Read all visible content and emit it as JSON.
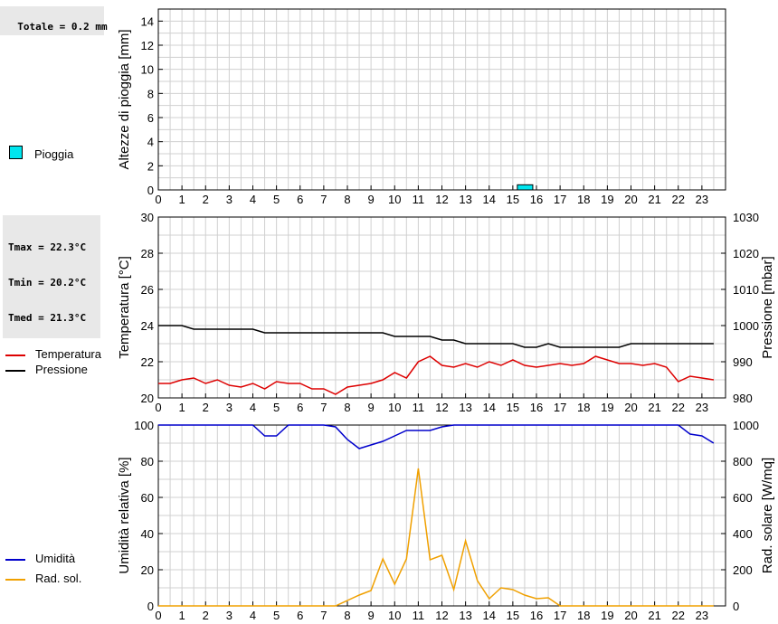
{
  "stats": {
    "rain_total": "Totale = 0.2 mm",
    "tmax": "Tmax = 22.3°C",
    "tmin": "Tmin = 20.2°C",
    "tmed": "Tmed = 21.3°C"
  },
  "legend": {
    "rain": "Pioggia",
    "temperature": "Temperatura",
    "pressure": "Pressione",
    "humidity": "Umidità",
    "solar": "Rad. sol."
  },
  "colors": {
    "rain": "#00e5ee",
    "temperature": "#dd0000",
    "pressure": "#000000",
    "humidity": "#0000cc",
    "solar": "#f0a000",
    "grid": "#d0d0d0"
  },
  "chart_data": [
    {
      "type": "bar",
      "ylabel": "Altezze di pioggia [mm]",
      "xlim": [
        0,
        24
      ],
      "ylim": [
        0,
        15
      ],
      "x_ticks": [
        0,
        1,
        2,
        3,
        4,
        5,
        6,
        7,
        8,
        9,
        10,
        11,
        12,
        13,
        14,
        15,
        16,
        17,
        18,
        19,
        20,
        21,
        22,
        23
      ],
      "y_ticks": [
        0,
        2,
        4,
        6,
        8,
        10,
        12,
        14
      ],
      "series": [
        {
          "name": "Pioggia",
          "x": [
            15.0
          ],
          "values": [
            0.2
          ]
        }
      ]
    },
    {
      "type": "line",
      "ylabel": "Temperatura [°C]",
      "ylabel_right": "Pressione [mbar]",
      "xlim": [
        0,
        24
      ],
      "ylim": [
        20,
        30
      ],
      "ylim_right": [
        980,
        1030
      ],
      "x_ticks": [
        0,
        1,
        2,
        3,
        4,
        5,
        6,
        7,
        8,
        9,
        10,
        11,
        12,
        13,
        14,
        15,
        16,
        17,
        18,
        19,
        20,
        21,
        22,
        23
      ],
      "y_ticks": [
        20,
        22,
        24,
        26,
        28,
        30
      ],
      "y_ticks_right": [
        980,
        990,
        1000,
        1010,
        1020,
        1030
      ],
      "series": [
        {
          "name": "Temperatura",
          "axis": "left",
          "x": [
            0,
            0.5,
            1,
            1.5,
            2,
            2.5,
            3,
            3.5,
            4,
            4.5,
            5,
            5.5,
            6,
            6.5,
            7,
            7.5,
            8,
            8.5,
            9,
            9.5,
            10,
            10.5,
            11,
            11.5,
            12,
            12.5,
            13,
            13.5,
            14,
            14.5,
            15,
            15.5,
            16,
            16.5,
            17,
            17.5,
            18,
            18.5,
            19,
            19.5,
            20,
            20.5,
            21,
            21.5,
            22,
            22.5,
            23,
            23.5
          ],
          "values": [
            20.8,
            20.8,
            21.0,
            21.1,
            20.8,
            21.0,
            20.7,
            20.6,
            20.8,
            20.5,
            20.9,
            20.8,
            20.8,
            20.5,
            20.5,
            20.2,
            20.6,
            20.7,
            20.8,
            21.0,
            21.4,
            21.1,
            22.0,
            22.3,
            21.8,
            21.7,
            21.9,
            21.7,
            22.0,
            21.8,
            22.1,
            21.8,
            21.7,
            21.8,
            21.9,
            21.8,
            21.9,
            22.3,
            22.1,
            21.9,
            21.9,
            21.8,
            21.9,
            21.7,
            20.9,
            21.2,
            21.1,
            21.0
          ]
        },
        {
          "name": "Pressione",
          "axis": "right",
          "x": [
            0,
            0.5,
            1,
            1.5,
            2,
            2.5,
            3,
            3.5,
            4,
            4.5,
            5,
            5.5,
            6,
            6.5,
            7,
            7.5,
            8,
            8.5,
            9,
            9.5,
            10,
            10.5,
            11,
            11.5,
            12,
            12.5,
            13,
            13.5,
            14,
            14.5,
            15,
            15.5,
            16,
            16.5,
            17,
            17.5,
            18,
            18.5,
            19,
            19.5,
            20,
            20.5,
            21,
            21.5,
            22,
            22.5,
            23,
            23.5
          ],
          "values": [
            1000,
            1000,
            1000,
            999,
            999,
            999,
            999,
            999,
            999,
            998,
            998,
            998,
            998,
            998,
            998,
            998,
            998,
            998,
            998,
            998,
            997,
            997,
            997,
            997,
            996,
            996,
            995,
            995,
            995,
            995,
            995,
            994,
            994,
            995,
            994,
            994,
            994,
            994,
            994,
            994,
            995,
            995,
            995,
            995,
            995,
            995,
            995,
            995
          ]
        }
      ]
    },
    {
      "type": "line",
      "ylabel": "Umidità relativa [%]",
      "ylabel_right": "Rad. solare [W/mq]",
      "xlim": [
        0,
        24
      ],
      "ylim": [
        0,
        100
      ],
      "ylim_right": [
        0,
        1000
      ],
      "x_ticks": [
        0,
        1,
        2,
        3,
        4,
        5,
        6,
        7,
        8,
        9,
        10,
        11,
        12,
        13,
        14,
        15,
        16,
        17,
        18,
        19,
        20,
        21,
        22,
        23
      ],
      "y_ticks": [
        0,
        20,
        40,
        60,
        80,
        100
      ],
      "y_ticks_right": [
        0,
        200,
        400,
        600,
        800,
        1000
      ],
      "series": [
        {
          "name": "Umidità",
          "axis": "left",
          "x": [
            0,
            0.5,
            1,
            1.5,
            2,
            2.5,
            3,
            3.5,
            4,
            4.5,
            5,
            5.5,
            6,
            6.5,
            7,
            7.5,
            8,
            8.5,
            9,
            9.5,
            10,
            10.5,
            11,
            11.5,
            12,
            12.5,
            13,
            13.5,
            14,
            14.5,
            15,
            15.5,
            16,
            16.5,
            17,
            17.5,
            18,
            18.5,
            19,
            19.5,
            20,
            20.5,
            21,
            21.5,
            22,
            22.5,
            23,
            23.5
          ],
          "values": [
            100,
            100,
            100,
            100,
            100,
            100,
            100,
            100,
            100,
            94,
            94,
            100,
            100,
            100,
            100,
            99,
            92,
            87,
            89,
            91,
            94,
            97,
            97,
            97,
            99,
            100,
            100,
            100,
            100,
            100,
            100,
            100,
            100,
            100,
            100,
            100,
            100,
            100,
            100,
            100,
            100,
            100,
            100,
            100,
            100,
            95,
            94,
            90
          ]
        },
        {
          "name": "Rad. sol.",
          "axis": "right",
          "x": [
            0,
            0.5,
            1,
            1.5,
            2,
            2.5,
            3,
            3.5,
            4,
            4.5,
            5,
            5.5,
            6,
            6.5,
            7,
            7.5,
            8,
            8.5,
            9,
            9.5,
            10,
            10.5,
            11,
            11.5,
            12,
            12.5,
            13,
            13.5,
            14,
            14.5,
            15,
            15.5,
            16,
            16.5,
            17,
            17.5,
            18,
            18.5,
            19,
            19.5,
            20,
            20.5,
            21,
            21.5,
            22,
            22.5,
            23,
            23.5
          ],
          "values": [
            0,
            0,
            0,
            0,
            0,
            0,
            0,
            0,
            0,
            0,
            0,
            0,
            0,
            0,
            0,
            0,
            30,
            60,
            85,
            260,
            120,
            260,
            760,
            255,
            280,
            90,
            360,
            140,
            40,
            100,
            90,
            60,
            40,
            45,
            0,
            0,
            0,
            0,
            0,
            0,
            0,
            0,
            0,
            0,
            0,
            0,
            0,
            0
          ]
        }
      ]
    }
  ]
}
